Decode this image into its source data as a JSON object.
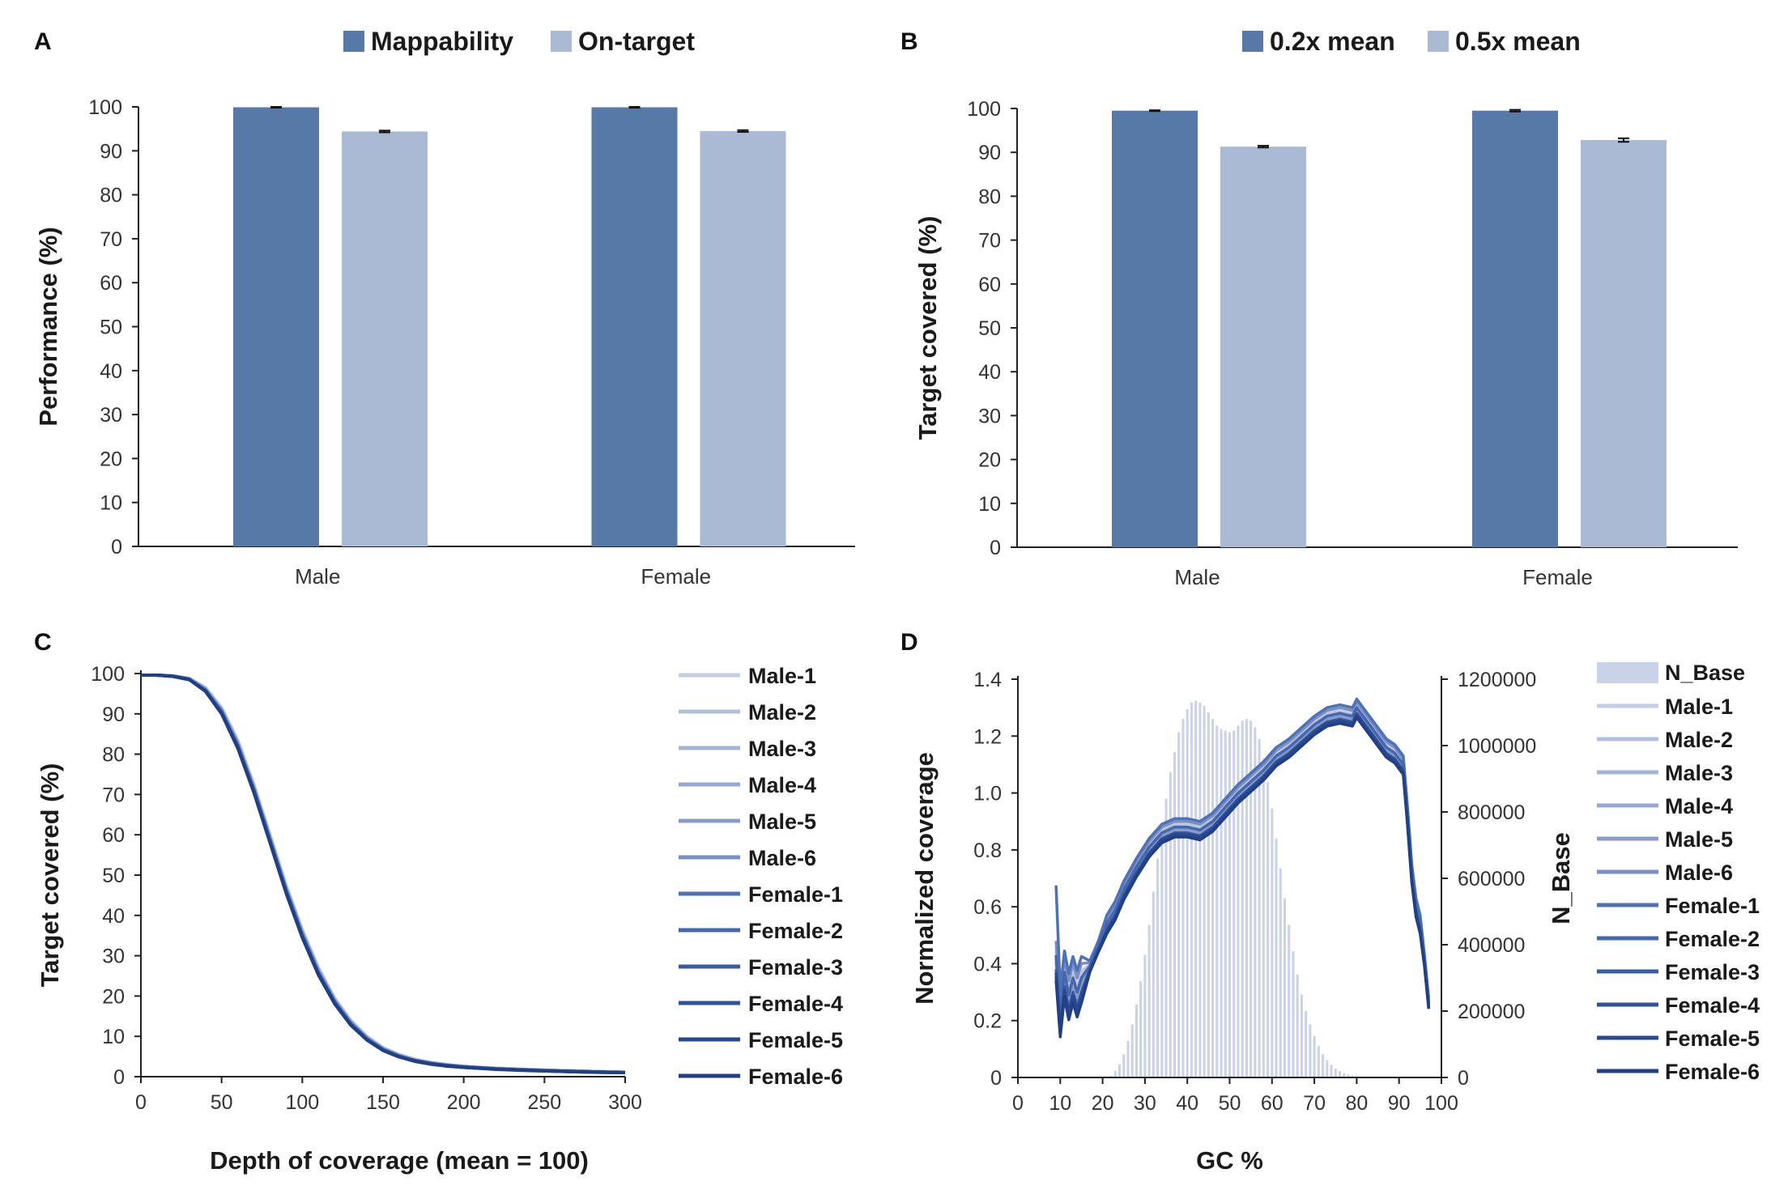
{
  "colors": {
    "dark_blue": "#5679a8",
    "light_blue": "#aab9d4",
    "hist": "#c9d2e6",
    "axis": "#222222",
    "series": [
      "#c4cee2",
      "#b3c0dc",
      "#a6b4d6",
      "#98a8d0",
      "#899cc9",
      "#7b8fc2",
      "#4f72b6",
      "#4467ad",
      "#3a5ca4",
      "#30529a",
      "#284890",
      "#213f85"
    ]
  },
  "panels": {
    "A": {
      "label": "A"
    },
    "B": {
      "label": "B"
    },
    "C": {
      "label": "C"
    },
    "D": {
      "label": "D"
    }
  },
  "chart_data": [
    {
      "panel": "A",
      "type": "bar",
      "title": "",
      "ylabel": "Performance (%)",
      "xlabel": "",
      "ylim": [
        0,
        100
      ],
      "yticks": [
        0,
        10,
        20,
        30,
        40,
        50,
        60,
        70,
        80,
        90,
        100
      ],
      "categories": [
        "Male",
        "Female"
      ],
      "series": [
        {
          "name": "Mappability",
          "values": [
            99.9,
            99.9
          ],
          "errors": [
            0.1,
            0.1
          ]
        },
        {
          "name": "On-target",
          "values": [
            94.4,
            94.5
          ],
          "errors": [
            0.2,
            0.2
          ]
        }
      ],
      "legend_position": "top"
    },
    {
      "panel": "B",
      "type": "bar",
      "title": "",
      "ylabel": "Target covered (%)",
      "xlabel": "",
      "ylim": [
        0,
        100
      ],
      "yticks": [
        0,
        10,
        20,
        30,
        40,
        50,
        60,
        70,
        80,
        90,
        100
      ],
      "categories": [
        "Male",
        "Female"
      ],
      "series": [
        {
          "name": "0.2x mean",
          "values": [
            99.5,
            99.5
          ],
          "errors": [
            0.1,
            0.2
          ]
        },
        {
          "name": "0.5x mean",
          "values": [
            91.3,
            92.8
          ],
          "errors": [
            0.2,
            0.4
          ]
        }
      ],
      "legend_position": "top"
    },
    {
      "panel": "C",
      "type": "line",
      "title": "",
      "ylabel": "Target covered (%)",
      "xlabel": "Depth of coverage (mean = 100)",
      "xlim": [
        0,
        300
      ],
      "ylim": [
        0,
        100
      ],
      "xticks": [
        0,
        50,
        100,
        150,
        200,
        250,
        300
      ],
      "yticks": [
        0,
        10,
        20,
        30,
        40,
        50,
        60,
        70,
        80,
        90,
        100
      ],
      "x": [
        0,
        10,
        20,
        30,
        40,
        50,
        60,
        70,
        80,
        90,
        100,
        110,
        120,
        130,
        140,
        150,
        160,
        170,
        180,
        190,
        200,
        220,
        240,
        260,
        280,
        300
      ],
      "series": [
        {
          "name": "Male-1",
          "values": [
            99.6,
            99.6,
            99.4,
            98.8,
            96.5,
            91.5,
            83.5,
            72.5,
            60.0,
            47.5,
            36.5,
            27.0,
            19.5,
            14.0,
            10.0,
            7.2,
            5.5,
            4.3,
            3.5,
            3.0,
            2.6,
            2.1,
            1.8,
            1.5,
            1.3,
            1.1
          ]
        },
        {
          "name": "Male-2",
          "values": [
            99.6,
            99.6,
            99.4,
            98.8,
            96.4,
            91.4,
            83.3,
            72.3,
            59.8,
            47.3,
            36.3,
            26.8,
            19.4,
            13.9,
            9.9,
            7.1,
            5.4,
            4.2,
            3.5,
            3.0,
            2.6,
            2.1,
            1.8,
            1.5,
            1.3,
            1.1
          ]
        },
        {
          "name": "Male-3",
          "values": [
            99.6,
            99.6,
            99.4,
            98.7,
            96.3,
            91.2,
            83.0,
            72.0,
            59.5,
            47.0,
            36.0,
            26.6,
            19.2,
            13.8,
            9.8,
            7.0,
            5.3,
            4.2,
            3.4,
            2.9,
            2.5,
            2.0,
            1.7,
            1.5,
            1.3,
            1.1
          ]
        },
        {
          "name": "Male-4",
          "values": [
            99.6,
            99.6,
            99.4,
            98.7,
            96.2,
            91.0,
            82.8,
            71.8,
            59.3,
            46.8,
            35.8,
            26.4,
            19.0,
            13.6,
            9.7,
            7.0,
            5.3,
            4.1,
            3.4,
            2.9,
            2.5,
            2.0,
            1.7,
            1.5,
            1.3,
            1.1
          ]
        },
        {
          "name": "Male-5",
          "values": [
            99.6,
            99.6,
            99.4,
            98.7,
            96.1,
            90.9,
            82.6,
            71.6,
            59.1,
            46.6,
            35.6,
            26.2,
            18.9,
            13.5,
            9.6,
            6.9,
            5.2,
            4.1,
            3.4,
            2.9,
            2.5,
            2.0,
            1.7,
            1.4,
            1.2,
            1.0
          ]
        },
        {
          "name": "Male-6",
          "values": [
            99.6,
            99.6,
            99.4,
            98.6,
            96.0,
            90.7,
            82.4,
            71.4,
            58.9,
            46.4,
            35.4,
            26.0,
            18.8,
            13.4,
            9.5,
            6.8,
            5.1,
            4.0,
            3.3,
            2.8,
            2.4,
            2.0,
            1.7,
            1.4,
            1.2,
            1.0
          ]
        },
        {
          "name": "Female-1",
          "values": [
            99.6,
            99.6,
            99.3,
            98.6,
            95.9,
            90.6,
            82.2,
            71.2,
            58.7,
            46.2,
            35.2,
            25.8,
            18.6,
            13.2,
            9.4,
            6.7,
            5.1,
            4.0,
            3.3,
            2.8,
            2.4,
            1.9,
            1.6,
            1.4,
            1.2,
            1.0
          ]
        },
        {
          "name": "Female-2",
          "values": [
            99.6,
            99.6,
            99.3,
            98.6,
            95.8,
            90.4,
            82.0,
            71.0,
            58.5,
            46.0,
            35.0,
            25.7,
            18.5,
            13.1,
            9.3,
            6.7,
            5.0,
            3.9,
            3.2,
            2.8,
            2.4,
            1.9,
            1.6,
            1.4,
            1.2,
            1.0
          ]
        },
        {
          "name": "Female-3",
          "values": [
            99.6,
            99.6,
            99.3,
            98.5,
            95.7,
            90.3,
            81.8,
            70.8,
            58.3,
            45.8,
            34.8,
            25.5,
            18.4,
            13.0,
            9.2,
            6.6,
            5.0,
            3.9,
            3.2,
            2.7,
            2.4,
            1.9,
            1.6,
            1.4,
            1.2,
            1.0
          ]
        },
        {
          "name": "Female-4",
          "values": [
            99.6,
            99.6,
            99.3,
            98.5,
            95.7,
            90.2,
            81.7,
            70.7,
            58.2,
            45.7,
            34.7,
            25.4,
            18.3,
            12.9,
            9.2,
            6.6,
            5.0,
            3.9,
            3.2,
            2.7,
            2.3,
            1.9,
            1.6,
            1.3,
            1.1,
            1.0
          ]
        },
        {
          "name": "Female-5",
          "values": [
            99.6,
            99.6,
            99.3,
            98.5,
            95.6,
            90.1,
            81.6,
            70.6,
            58.1,
            45.6,
            34.6,
            25.3,
            18.2,
            12.9,
            9.1,
            6.5,
            4.9,
            3.8,
            3.1,
            2.7,
            2.3,
            1.9,
            1.6,
            1.3,
            1.1,
            1.0
          ]
        },
        {
          "name": "Female-6",
          "values": [
            99.6,
            99.6,
            99.3,
            98.5,
            95.6,
            90.0,
            81.5,
            70.5,
            58.0,
            45.5,
            34.5,
            25.2,
            18.1,
            12.8,
            9.1,
            6.5,
            4.9,
            3.8,
            3.1,
            2.6,
            2.3,
            1.8,
            1.5,
            1.3,
            1.1,
            1.0
          ]
        }
      ],
      "legend_position": "right"
    },
    {
      "panel": "D",
      "type": "line",
      "title": "",
      "ylabel": "Normalized coverage",
      "y2label": "N_Base",
      "xlabel": "GC %",
      "xlim": [
        0,
        100
      ],
      "ylim": [
        0,
        1.4
      ],
      "y2lim": [
        0,
        1200000
      ],
      "xticks": [
        0,
        10,
        20,
        30,
        40,
        50,
        60,
        70,
        80,
        90,
        100
      ],
      "yticks": [
        0,
        0.2,
        0.4,
        0.6,
        0.8,
        1.0,
        1.2,
        1.4
      ],
      "ytick_labels": [
        "0",
        "0.2",
        "0.4",
        "0.6",
        "0.8",
        "1.0",
        "1.2",
        "1.4"
      ],
      "y2ticks": [
        0,
        200000,
        400000,
        600000,
        800000,
        1000000,
        1200000
      ],
      "x": [
        9,
        10,
        11,
        12,
        13,
        14,
        15,
        17,
        19,
        21,
        23,
        25,
        28,
        31,
        34,
        37,
        40,
        43,
        46,
        49,
        52,
        55,
        58,
        61,
        64,
        67,
        70,
        73,
        76,
        79,
        80,
        81,
        83,
        85,
        87,
        89,
        91,
        92,
        93,
        94,
        95,
        96,
        97
      ],
      "base": [
        0.38,
        0.18,
        0.32,
        0.24,
        0.3,
        0.25,
        0.3,
        0.38,
        0.45,
        0.52,
        0.57,
        0.64,
        0.72,
        0.79,
        0.84,
        0.86,
        0.86,
        0.85,
        0.88,
        0.93,
        0.98,
        1.02,
        1.06,
        1.11,
        1.14,
        1.18,
        1.22,
        1.25,
        1.26,
        1.25,
        1.28,
        1.26,
        1.22,
        1.18,
        1.14,
        1.12,
        1.08,
        0.9,
        0.7,
        0.58,
        0.52,
        0.4,
        0.25
      ],
      "series": [
        {
          "name": "Male-1",
          "offset": 0.03
        },
        {
          "name": "Male-2",
          "offset": 0.025
        },
        {
          "name": "Male-3",
          "offset": 0.02
        },
        {
          "name": "Male-4",
          "offset": 0.015
        },
        {
          "name": "Male-5",
          "offset": 0.01
        },
        {
          "name": "Male-6",
          "offset": 0.04
        },
        {
          "name": "Female-1",
          "offset": 0.05
        },
        {
          "name": "Female-2",
          "offset": 0.02
        },
        {
          "name": "Female-3",
          "offset": 0.0
        },
        {
          "name": "Female-4",
          "offset": -0.01
        },
        {
          "name": "Female-5",
          "offset": -0.005
        },
        {
          "name": "Female-6",
          "offset": -0.015
        }
      ],
      "histogram": {
        "name": "N_Base",
        "x": [
          22,
          23,
          24,
          25,
          26,
          27,
          28,
          29,
          30,
          31,
          32,
          33,
          34,
          35,
          36,
          37,
          38,
          39,
          40,
          41,
          42,
          43,
          44,
          45,
          46,
          47,
          48,
          49,
          50,
          51,
          52,
          53,
          54,
          55,
          56,
          57,
          58,
          59,
          60,
          61,
          62,
          63,
          64,
          65,
          66,
          67,
          68,
          69,
          70,
          71,
          72,
          73,
          74,
          75,
          76,
          77,
          78,
          79,
          80,
          81,
          82,
          83,
          84,
          85,
          86
        ],
        "values": [
          5000,
          20000,
          40000,
          70000,
          110000,
          160000,
          220000,
          290000,
          370000,
          460000,
          560000,
          660000,
          750000,
          840000,
          920000,
          980000,
          1040000,
          1080000,
          1110000,
          1130000,
          1135000,
          1130000,
          1120000,
          1100000,
          1080000,
          1060000,
          1050000,
          1045000,
          1040000,
          1045000,
          1060000,
          1075000,
          1080000,
          1075000,
          1055000,
          1020000,
          960000,
          890000,
          810000,
          720000,
          630000,
          540000,
          460000,
          380000,
          310000,
          250000,
          200000,
          160000,
          125000,
          95000,
          70000,
          52000,
          38000,
          27000,
          19000,
          13000,
          9000,
          6000,
          4000,
          3000,
          2000,
          1500,
          1000,
          700,
          400
        ]
      },
      "legend_position": "right"
    }
  ]
}
